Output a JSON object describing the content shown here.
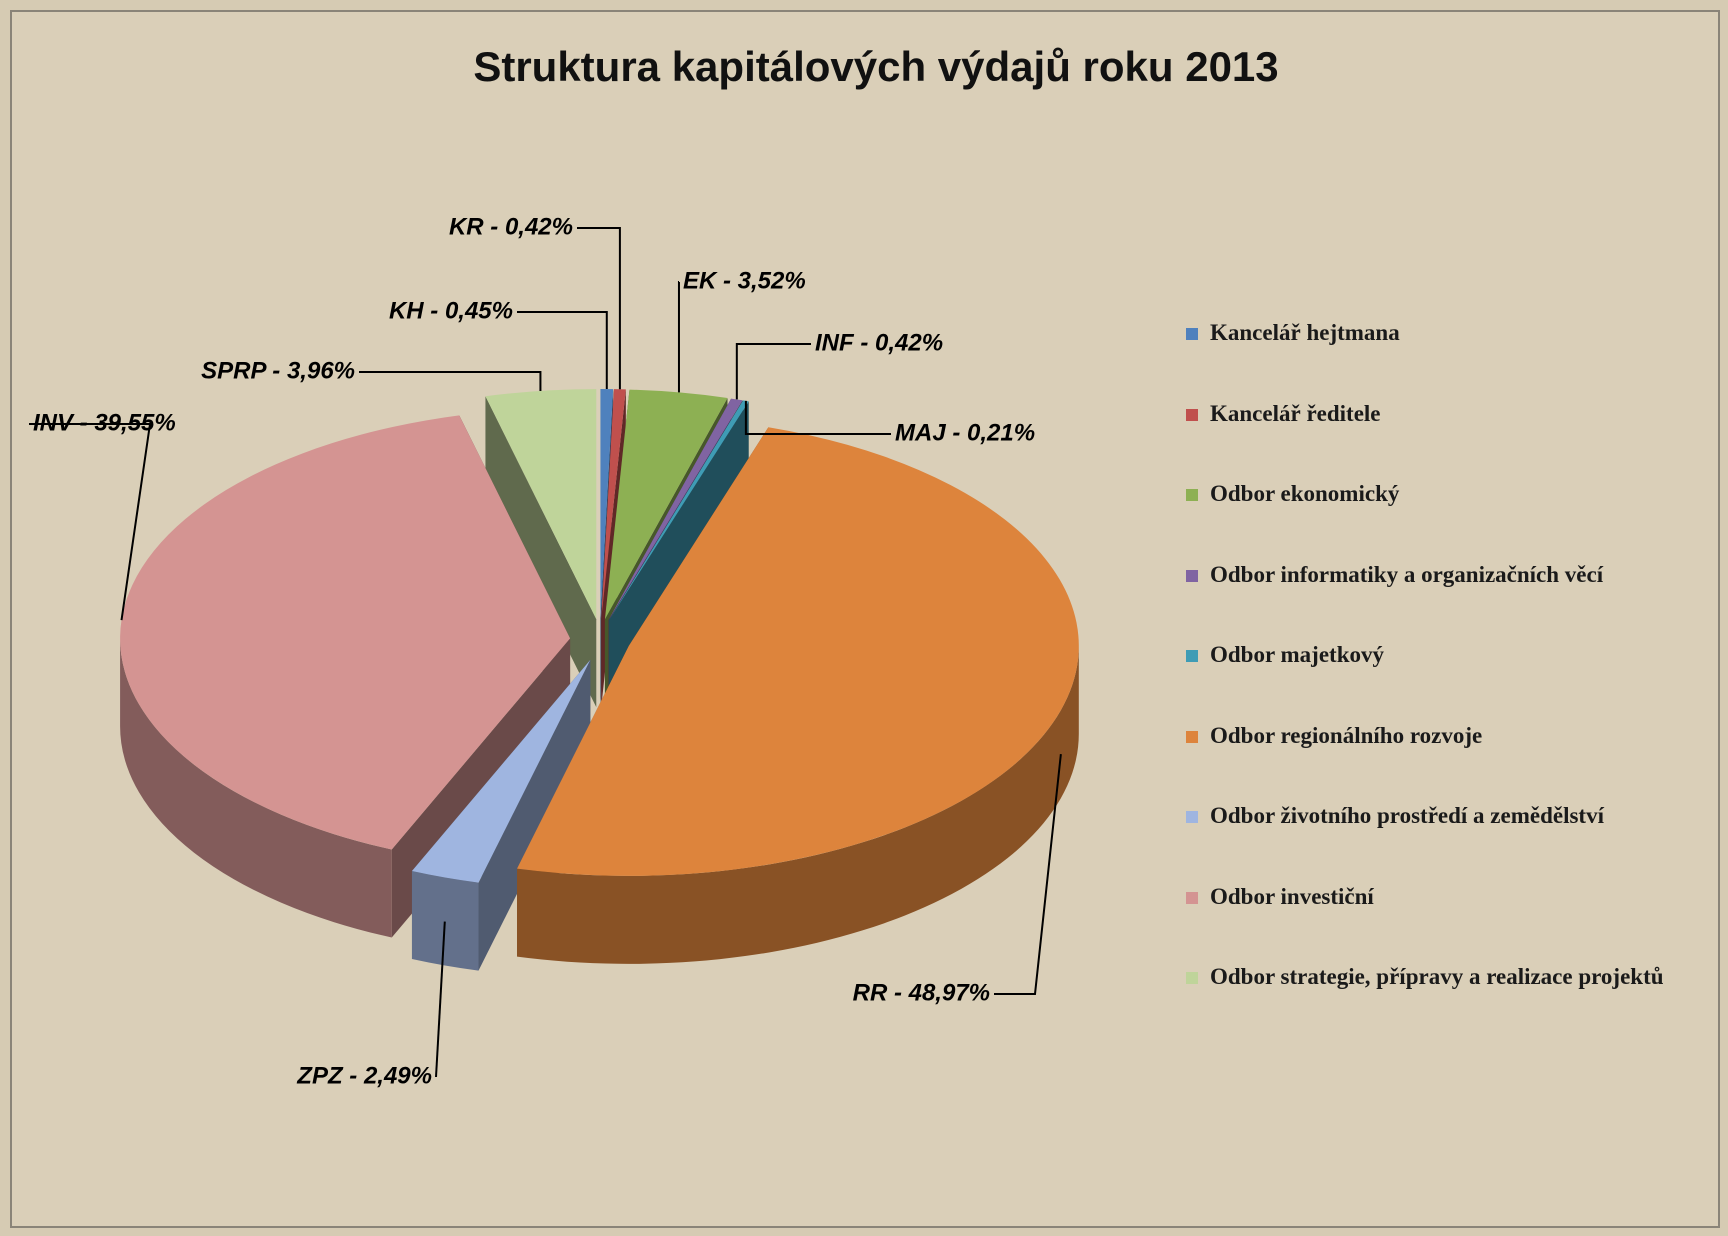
{
  "chart_data": {
    "type": "pie",
    "title": "Struktura kapitálových výdajů roku 2013",
    "categories": [
      "Kancelář hejtmana",
      "Kancelář ředitele",
      "Odbor ekonomický",
      "Odbor informatiky a organizačních věcí",
      "Odbor majetkový",
      "Odbor regionálního rozvoje",
      "Odbor životního prostředí a zemědělství",
      "Odbor investiční",
      "Odbor strategie, přípravy a realizace projektů"
    ],
    "values": [
      0.45,
      0.42,
      3.52,
      0.42,
      0.21,
      48.97,
      2.49,
      39.55,
      3.96
    ],
    "value_labels": [
      "KH - 0,45%",
      "KR - 0,42%",
      "EK - 3,52%",
      "INF - 0,42%",
      "MAJ - 0,21%",
      "RR - 48,97%",
      "ZPZ - 2,49%",
      "INV - 39,55%",
      "SPRP - 3,96%"
    ],
    "colors": [
      "#4f81bd",
      "#c0504d",
      "#8db053",
      "#8064a2",
      "#3f9cb5",
      "#dd843c",
      "#9fb5e0",
      "#d49492",
      "#bfd49a"
    ],
    "legend": "right"
  }
}
